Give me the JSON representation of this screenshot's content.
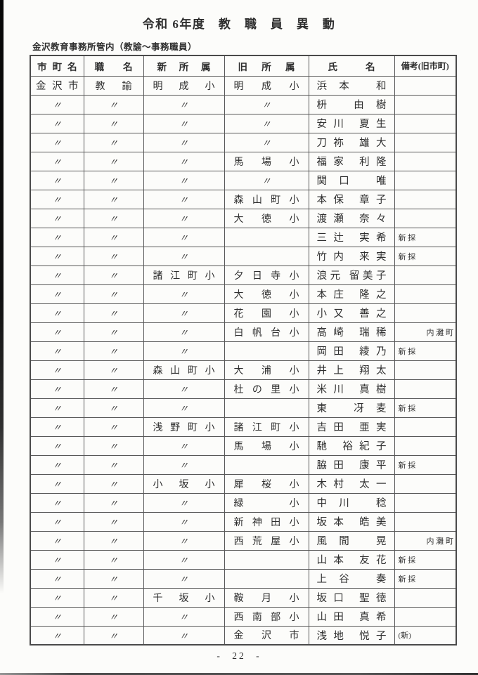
{
  "page": {
    "title": "令和 6年度　教　職　員　異　動",
    "subtitle": "金沢教育事務所管内（教諭〜事務職員）",
    "page_number": "- 22 -"
  },
  "table": {
    "headers": [
      "市 町 名",
      "職 名",
      "新 所 属",
      "旧 所 属",
      "氏 名",
      "備考(旧市町)"
    ],
    "rows": [
      {
        "city": "金 沢 市",
        "job_title": "教 諭",
        "new_school": "明 成 小",
        "old_school": "明 成 小",
        "name": "浜本 和",
        "remark": ""
      },
      {
        "city": "〃",
        "job_title": "〃",
        "new_school": "〃",
        "old_school": "〃",
        "name": "枡 由樹",
        "remark": ""
      },
      {
        "city": "〃",
        "job_title": "〃",
        "new_school": "〃",
        "old_school": "〃",
        "name": "安川 夏生",
        "remark": ""
      },
      {
        "city": "〃",
        "job_title": "〃",
        "new_school": "〃",
        "old_school": "〃",
        "name": "刀祢 雄大",
        "remark": ""
      },
      {
        "city": "〃",
        "job_title": "〃",
        "new_school": "〃",
        "old_school": "馬 場 小",
        "name": "福家 利隆",
        "remark": ""
      },
      {
        "city": "〃",
        "job_title": "〃",
        "new_school": "〃",
        "old_school": "〃",
        "name": "関口 唯",
        "remark": ""
      },
      {
        "city": "〃",
        "job_title": "〃",
        "new_school": "〃",
        "old_school": "森 山 町 小",
        "name": "本保 章子",
        "remark": ""
      },
      {
        "city": "〃",
        "job_title": "〃",
        "new_school": "〃",
        "old_school": "大 徳 小",
        "name": "渡瀬 奈々",
        "remark": ""
      },
      {
        "city": "〃",
        "job_title": "〃",
        "new_school": "〃",
        "old_school": "",
        "name": "三辻 実希",
        "remark": "新 採"
      },
      {
        "city": "〃",
        "job_title": "〃",
        "new_school": "〃",
        "old_school": "",
        "name": "竹内 来実",
        "remark": "新 採"
      },
      {
        "city": "〃",
        "job_title": "〃",
        "new_school": "諸 江 町 小",
        "old_school": "夕 日 寺 小",
        "name": "浪元 留美子",
        "remark": ""
      },
      {
        "city": "〃",
        "job_title": "〃",
        "new_school": "〃",
        "old_school": "大 徳 小",
        "name": "本庄 隆之",
        "remark": ""
      },
      {
        "city": "〃",
        "job_title": "〃",
        "new_school": "〃",
        "old_school": "花 園 小",
        "name": "小又 善之",
        "remark": ""
      },
      {
        "city": "〃",
        "job_title": "〃",
        "new_school": "〃",
        "old_school": "白 帆 台 小",
        "name": "高崎 瑞稀",
        "remark": "内 灘 町",
        "remark_align": "right"
      },
      {
        "city": "〃",
        "job_title": "〃",
        "new_school": "〃",
        "old_school": "",
        "name": "岡田 綾乃",
        "remark": "新 採"
      },
      {
        "city": "〃",
        "job_title": "〃",
        "new_school": "森 山 町 小",
        "old_school": "大 浦 小",
        "name": "井上 翔太",
        "remark": ""
      },
      {
        "city": "〃",
        "job_title": "〃",
        "new_school": "〃",
        "old_school": "杜 の 里 小",
        "name": "米川 真樹",
        "remark": ""
      },
      {
        "city": "〃",
        "job_title": "〃",
        "new_school": "〃",
        "old_school": "",
        "name": "東 冴麦",
        "remark": "新 採"
      },
      {
        "city": "〃",
        "job_title": "〃",
        "new_school": "浅 野 町 小",
        "old_school": "諸 江 町 小",
        "name": "吉田 亜実",
        "remark": ""
      },
      {
        "city": "〃",
        "job_title": "〃",
        "new_school": "〃",
        "old_school": "馬 場 小",
        "name": "馳 裕紀子",
        "remark": ""
      },
      {
        "city": "〃",
        "job_title": "〃",
        "new_school": "〃",
        "old_school": "",
        "name": "脇田 康平",
        "remark": "新 採"
      },
      {
        "city": "〃",
        "job_title": "〃",
        "new_school": "小 坂 小",
        "old_school": "犀 桜 小",
        "name": "木村 太一",
        "remark": ""
      },
      {
        "city": "〃",
        "job_title": "〃",
        "new_school": "〃",
        "old_school": "緑 小",
        "name": "中川 稔",
        "remark": ""
      },
      {
        "city": "〃",
        "job_title": "〃",
        "new_school": "〃",
        "old_school": "新 神 田 小",
        "name": "坂本 皓美",
        "remark": ""
      },
      {
        "city": "〃",
        "job_title": "〃",
        "new_school": "〃",
        "old_school": "西 荒 屋 小",
        "name": "風間 晃",
        "remark": "内 灘 町",
        "remark_align": "right"
      },
      {
        "city": "〃",
        "job_title": "〃",
        "new_school": "〃",
        "old_school": "",
        "name": "山本 友花",
        "remark": "新 採"
      },
      {
        "city": "〃",
        "job_title": "〃",
        "new_school": "〃",
        "old_school": "",
        "name": "上谷 奏",
        "remark": "新 採"
      },
      {
        "city": "〃",
        "job_title": "〃",
        "new_school": "千 坂 小",
        "old_school": "鞍 月 小",
        "name": "坂口 聖徳",
        "remark": ""
      },
      {
        "city": "〃",
        "job_title": "〃",
        "new_school": "〃",
        "old_school": "西 南 部 小",
        "name": "山田 真希",
        "remark": ""
      },
      {
        "city": "〃",
        "job_title": "〃",
        "new_school": "〃",
        "old_school": "金 沢 市",
        "name": "浅地 悦子",
        "remark": "(新)"
      }
    ]
  }
}
